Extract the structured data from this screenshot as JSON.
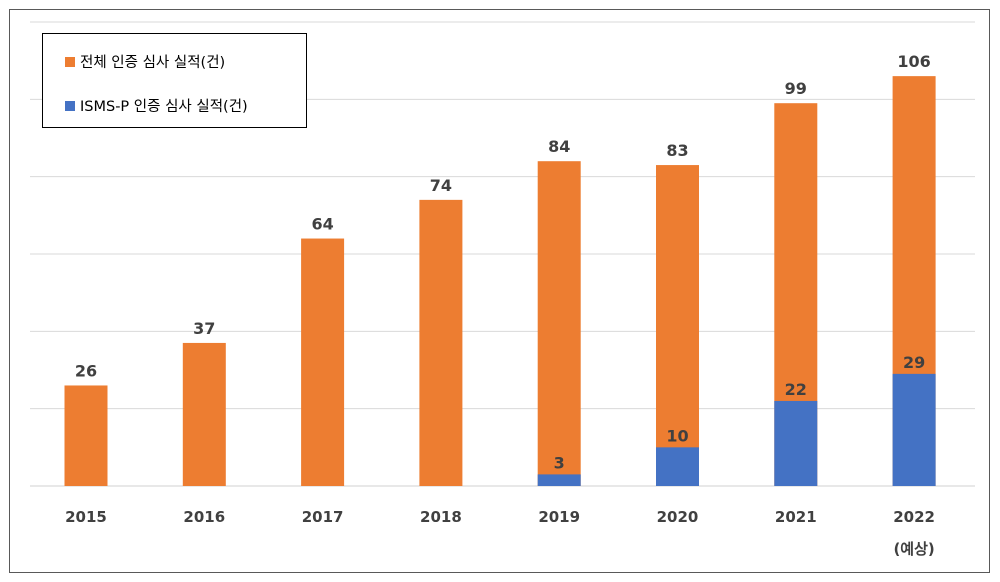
{
  "chart_data": {
    "type": "bar",
    "categories": [
      "2015",
      "2016",
      "2017",
      "2018",
      "2019",
      "2020",
      "2021",
      "2022"
    ],
    "category_sublabels": [
      "",
      "",
      "",
      "",
      "",
      "",
      "",
      "(예상)"
    ],
    "series": [
      {
        "name": "전체 인증 심사 실적(건)",
        "values": [
          26,
          37,
          64,
          74,
          84,
          83,
          99,
          106
        ],
        "color": "#ed7d31"
      },
      {
        "name": "ISMS-P 인증 심사 실적(건)",
        "values": [
          null,
          null,
          null,
          null,
          3,
          10,
          22,
          29
        ],
        "color": "#4472c4"
      }
    ],
    "ylim": [
      0,
      120
    ],
    "grid": true,
    "legend_position": "top-left",
    "data_labels": true
  },
  "colors": {
    "grid": "#d9d9d9",
    "axis": "#d9d9d9",
    "text": "#404040"
  }
}
